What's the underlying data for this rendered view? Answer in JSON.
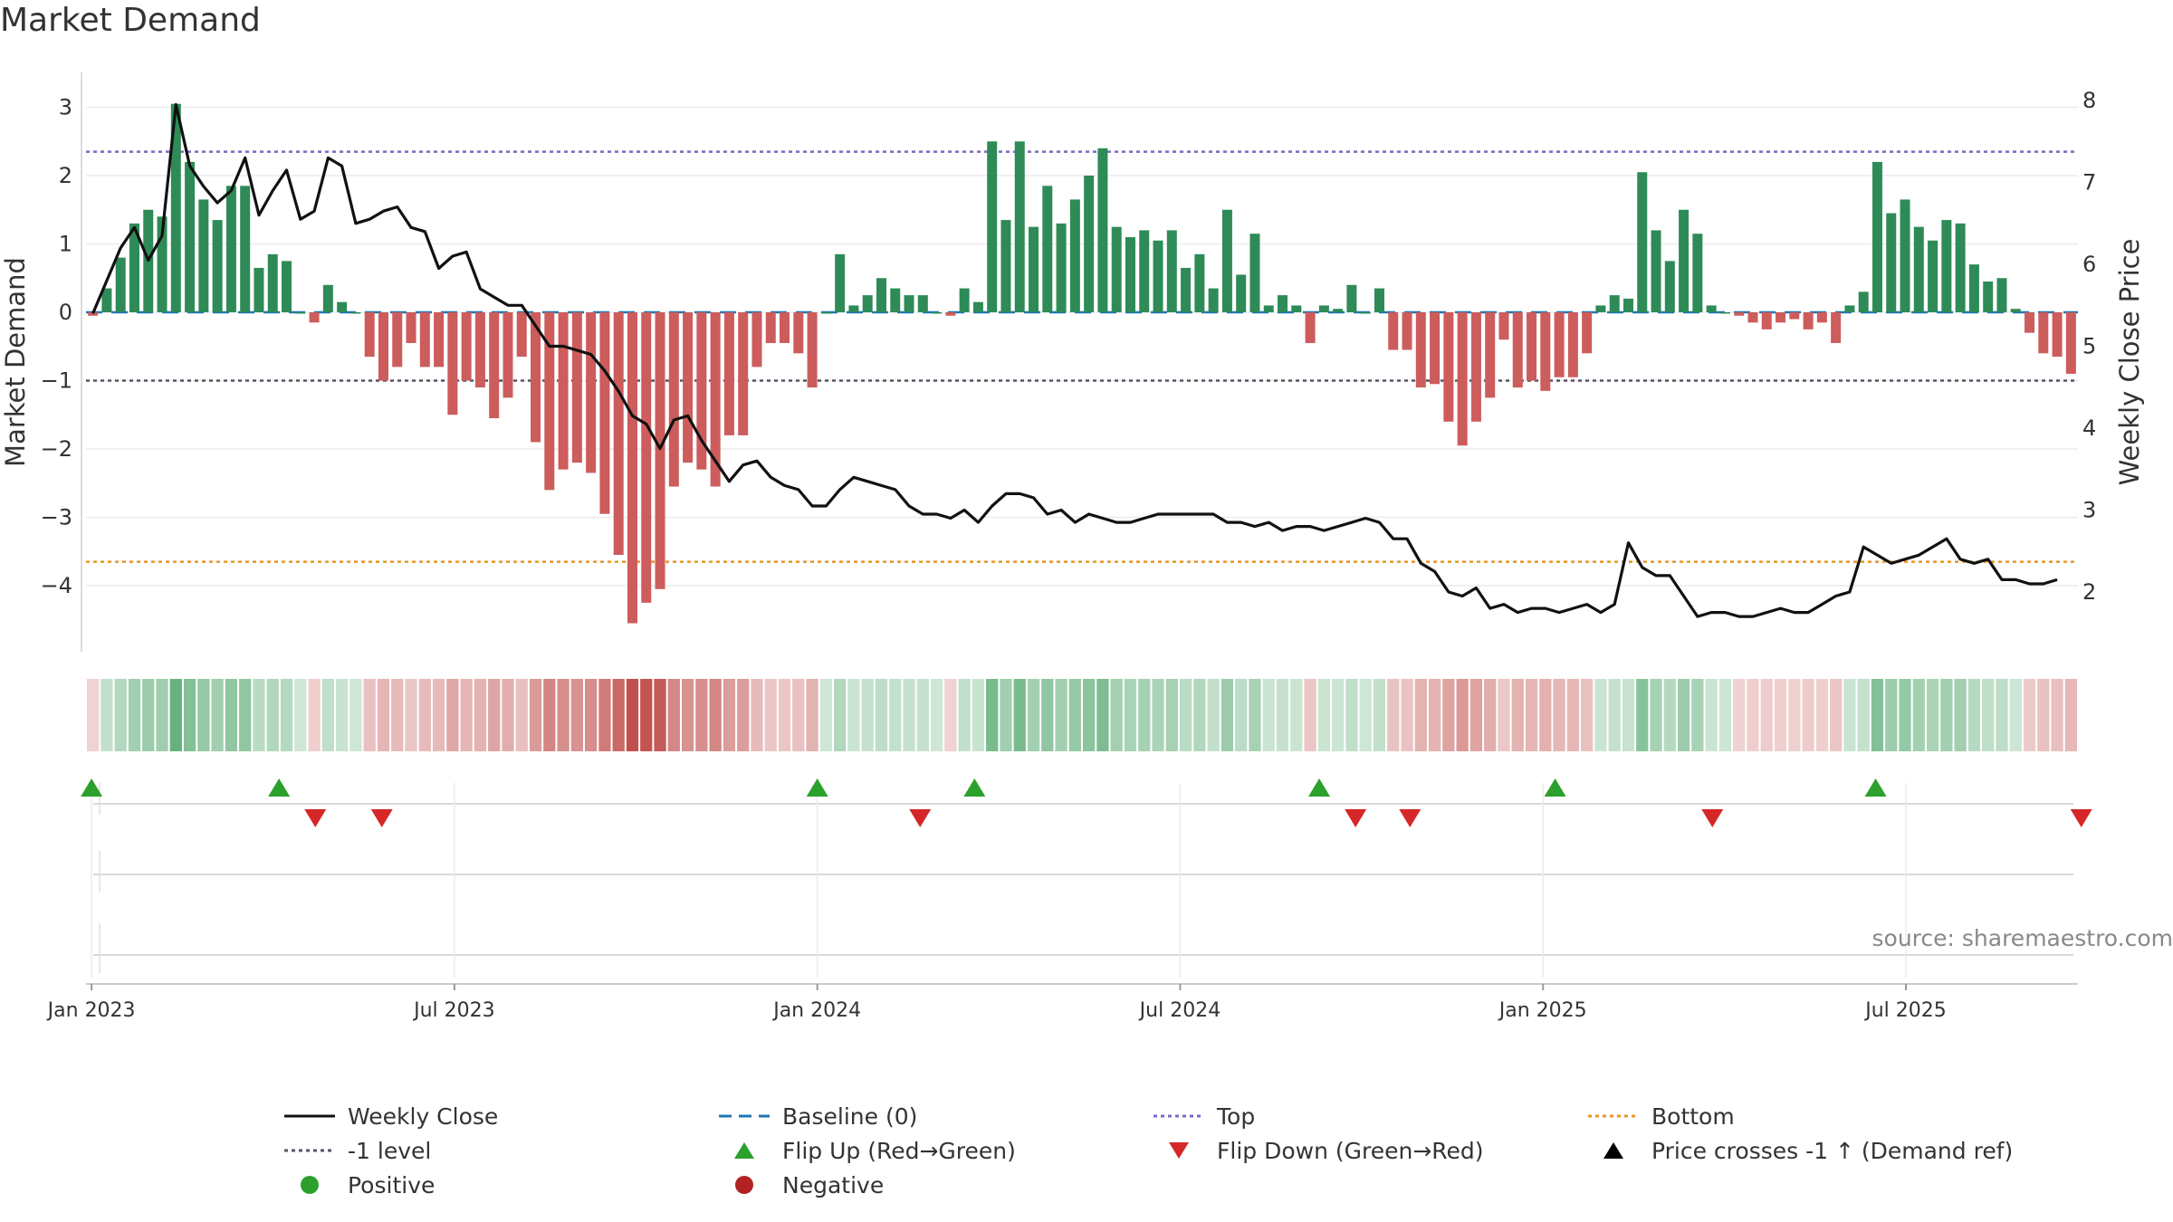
{
  "title": "Market Demand",
  "source": "source: sharemaestro.com",
  "colors": {
    "positive": "#2e8b57",
    "negative": "#cd5c5c",
    "price": "#111111",
    "top": "#7b68c8",
    "bottom": "#e8962a",
    "baseline": "#1f77b4",
    "minus1": "#555566",
    "flip_up": "#2ca02c",
    "flip_down": "#d62728"
  },
  "chart_data": {
    "type": "bar",
    "x_ticks": [
      "Jan 2023",
      "Jul 2023",
      "Jan 2024",
      "Jul 2024",
      "Jan 2025",
      "Jul 2025"
    ],
    "left_axis": {
      "label": "Market Demand",
      "ticks": [
        "3",
        "2",
        "1",
        "0",
        "−1",
        "−2",
        "−3",
        "−4"
      ],
      "ylim": [
        -4.9,
        3.2
      ]
    },
    "right_axis": {
      "label": "Weekly Close Price",
      "ticks": [
        "8",
        "7",
        "6",
        "5",
        "4",
        "3",
        "2"
      ],
      "ylim": [
        1.5,
        8.1
      ]
    },
    "reference_lines": {
      "top": 2.35,
      "bottom": -3.65,
      "minus1": -1,
      "baseline": 0
    },
    "series": [
      {
        "name": "Market Demand",
        "type": "bar",
        "values": [
          -0.05,
          0.35,
          0.8,
          1.3,
          1.5,
          1.4,
          3.05,
          2.2,
          1.65,
          1.35,
          1.85,
          1.85,
          0.65,
          0.85,
          0.75,
          0,
          -0.15,
          0.4,
          0.15,
          0,
          -0.65,
          -1.0,
          -0.8,
          -0.45,
          -0.8,
          -0.8,
          -1.5,
          -1.0,
          -1.1,
          -1.55,
          -1.25,
          -0.65,
          -1.9,
          -2.6,
          -2.3,
          -2.2,
          -2.35,
          -2.95,
          -3.55,
          -4.55,
          -4.25,
          -4.05,
          -2.55,
          -2.2,
          -2.3,
          -2.55,
          -1.8,
          -1.8,
          -0.8,
          -0.45,
          -0.45,
          -0.6,
          -1.1,
          0,
          0.85,
          0.1,
          0.25,
          0.5,
          0.35,
          0.25,
          0.25,
          0,
          -0.05,
          0.35,
          0.15,
          2.5,
          1.35,
          2.5,
          1.25,
          1.85,
          1.3,
          1.65,
          2.0,
          2.4,
          1.25,
          1.1,
          1.2,
          1.05,
          1.2,
          0.65,
          0.85,
          0.35,
          1.5,
          0.55,
          1.15,
          0.1,
          0.25,
          0.1,
          -0.45,
          0.1,
          0.05,
          0.4,
          0,
          0.35,
          -0.55,
          -0.55,
          -1.1,
          -1.05,
          -1.6,
          -1.95,
          -1.6,
          -1.25,
          -0.4,
          -1.1,
          -1.0,
          -1.15,
          -0.95,
          -0.95,
          -0.6,
          0.1,
          0.25,
          0.2,
          2.05,
          1.2,
          0.75,
          1.5,
          1.15,
          0.1,
          0,
          -0.05,
          -0.15,
          -0.25,
          -0.15,
          -0.1,
          -0.25,
          -0.15,
          -0.45,
          0.1,
          0.3,
          2.2,
          1.45,
          1.65,
          1.25,
          1.05,
          1.35,
          1.3,
          0.7,
          0.45,
          0.5,
          0.05,
          -0.3,
          -0.6,
          -0.65,
          -0.9
        ]
      },
      {
        "name": "Weekly Close",
        "type": "line",
        "axis": "right",
        "values": [
          5.4,
          5.8,
          6.2,
          6.45,
          6.05,
          6.35,
          7.95,
          7.2,
          6.95,
          6.75,
          6.9,
          7.3,
          6.6,
          6.9,
          7.15,
          6.55,
          6.65,
          7.3,
          7.2,
          6.5,
          6.55,
          6.65,
          6.7,
          6.45,
          6.4,
          5.95,
          6.1,
          6.15,
          5.7,
          5.6,
          5.5,
          5.5,
          5.25,
          5.0,
          5.0,
          4.95,
          4.9,
          4.7,
          4.45,
          4.15,
          4.05,
          3.75,
          4.1,
          4.15,
          3.85,
          3.6,
          3.35,
          3.55,
          3.6,
          3.4,
          3.3,
          3.25,
          3.05,
          3.05,
          3.25,
          3.4,
          3.35,
          3.3,
          3.25,
          3.05,
          2.95,
          2.95,
          2.9,
          3.0,
          2.85,
          3.05,
          3.2,
          3.2,
          3.15,
          2.95,
          3.0,
          2.85,
          2.95,
          2.9,
          2.85,
          2.85,
          2.9,
          2.95,
          2.95,
          2.95,
          2.95,
          2.95,
          2.85,
          2.85,
          2.8,
          2.85,
          2.75,
          2.8,
          2.8,
          2.75,
          2.8,
          2.85,
          2.9,
          2.85,
          2.65,
          2.65,
          2.35,
          2.25,
          2.0,
          1.95,
          2.05,
          1.8,
          1.85,
          1.75,
          1.8,
          1.8,
          1.75,
          1.8,
          1.85,
          1.75,
          1.85,
          2.6,
          2.3,
          2.2,
          2.2,
          1.95,
          1.7,
          1.75,
          1.75,
          1.7,
          1.7,
          1.75,
          1.8,
          1.75,
          1.75,
          1.85,
          1.95,
          2.0,
          2.55,
          2.45,
          2.35,
          2.4,
          2.45,
          2.55,
          2.65,
          2.4,
          2.35,
          2.4,
          2.15,
          2.15,
          2.1,
          2.1,
          2.15
        ]
      }
    ],
    "flip_up": [
      "Jan 2023",
      "Apr 2023",
      "Jan 2024",
      "Mar 2024",
      "Sep 2024",
      "Jan 2025",
      "Jun 2025"
    ],
    "flip_down": [
      "Apr 2023",
      "May 2023",
      "Feb 2024",
      "Sep 2024",
      "Oct 2024",
      "Mar 2025",
      "Sep 2025"
    ]
  },
  "legend": [
    {
      "label": "Weekly Close",
      "symbol": "line-solid",
      "color": "#111111"
    },
    {
      "label": "Baseline (0)",
      "symbol": "line-dashed",
      "color": "#1f77b4"
    },
    {
      "label": "Top",
      "symbol": "line-dotted",
      "color": "#7b68c8"
    },
    {
      "label": "Bottom",
      "symbol": "line-dotted",
      "color": "#e8962a"
    },
    {
      "label": "-1 level",
      "symbol": "line-dotted",
      "color": "#555566"
    },
    {
      "label": "Flip Up (Red→Green)",
      "symbol": "triangle-up",
      "color": "#2ca02c"
    },
    {
      "label": "Flip Down (Green→Red)",
      "symbol": "triangle-down",
      "color": "#d62728"
    },
    {
      "label": "Price crosses -1 ↑ (Demand ref)",
      "symbol": "triangle-up",
      "color": "#000000"
    },
    {
      "label": "Positive",
      "symbol": "dot",
      "color": "#2ca02c"
    },
    {
      "label": "Negative",
      "symbol": "dot",
      "color": "#b22222"
    }
  ]
}
